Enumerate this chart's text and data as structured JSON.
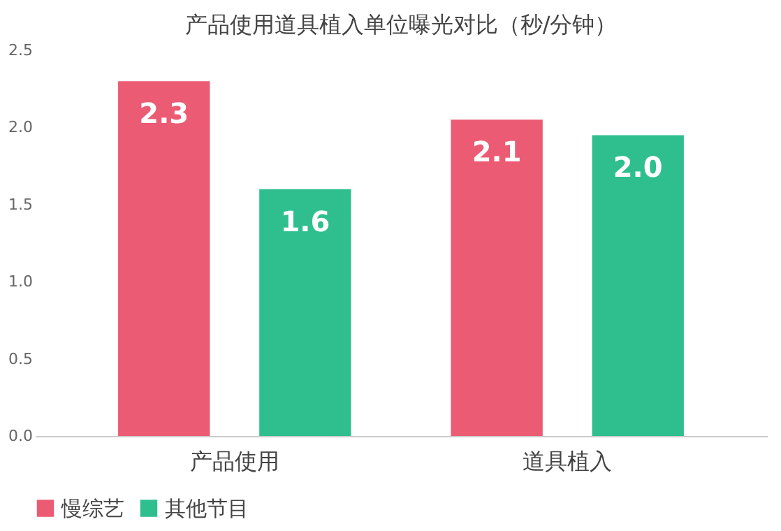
{
  "chart_data": {
    "type": "bar",
    "title": "产品使用道具植入单位曝光对比（秒/分钟）",
    "categories": [
      "产品使用",
      "道具植入"
    ],
    "series": [
      {
        "name": "慢综艺",
        "color": "#eb5b73",
        "values": [
          2.3,
          2.05
        ],
        "value_labels": [
          "2.3",
          "2.1"
        ]
      },
      {
        "name": "其他节目",
        "color": "#2fbf8f",
        "values": [
          1.6,
          1.95
        ],
        "value_labels": [
          "1.6",
          "2.0"
        ]
      }
    ],
    "ylim": [
      0,
      2.5
    ],
    "yticks": [
      {
        "value": 0,
        "label": "0.0"
      },
      {
        "value": 0.5,
        "label": "0.5"
      },
      {
        "value": 1,
        "label": "1.0"
      },
      {
        "value": 1.5,
        "label": "1.5"
      },
      {
        "value": 2,
        "label": "2.0"
      },
      {
        "value": 2.5,
        "label": "2.5"
      }
    ],
    "grid": false,
    "legend": "bottom"
  }
}
